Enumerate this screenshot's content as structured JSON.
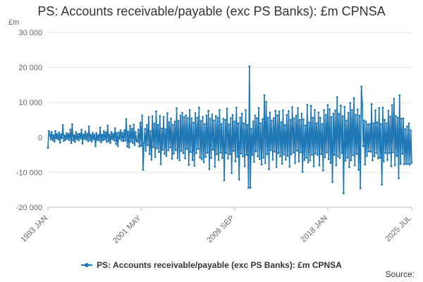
{
  "chart_data": {
    "type": "line",
    "title": "PS: Accounts receivable/payable (exc PS Banks): £m CPNSA",
    "ylabel": "£m",
    "xlabel": "",
    "ylim": [
      -20000,
      30000
    ],
    "y_ticks": [
      -20000,
      -10000,
      0,
      10000,
      20000,
      30000
    ],
    "y_tick_labels": [
      "-20 000",
      "-10 000",
      "0",
      "10 000",
      "20 000",
      "30 000"
    ],
    "x_ticks": [
      {
        "label": "1993 JAN",
        "year": 1993.0
      },
      {
        "label": "2001 MAY",
        "year": 2001.333
      },
      {
        "label": "2009 SEP",
        "year": 2009.667
      },
      {
        "label": "2018 JAN",
        "year": 2018.0
      },
      {
        "label": "2025 JUL",
        "year": 2025.5
      }
    ],
    "x_start": 1993.0,
    "x_end": 2025.5,
    "grid": true,
    "legend_position": "bottom",
    "series": [
      {
        "name": "PS: Accounts receivable/payable (exc PS Banks): £m CPNSA",
        "color": "#1f77b4",
        "x_start": "1993 JAN",
        "frequency": "monthly",
        "values": [
          -3000,
          1800,
          800,
          -500,
          1500,
          -800,
          600,
          -1200,
          1800,
          -300,
          900,
          -600,
          1400,
          -1500,
          800,
          -200,
          3500,
          -1000,
          500,
          -700,
          1200,
          -400,
          900,
          -800,
          2200,
          -1600,
          3700,
          -900,
          600,
          -1300,
          1500,
          -500,
          900,
          -900,
          1000,
          -300,
          2200,
          -1800,
          800,
          -400,
          1600,
          -600,
          1000,
          -1100,
          3100,
          -800,
          700,
          -1200,
          1300,
          -500,
          800,
          -2500,
          1200,
          -700,
          600,
          -900,
          2800,
          -1400,
          700,
          -800,
          1800,
          -600,
          1400,
          -1300,
          3300,
          -1100,
          800,
          -1600,
          1500,
          -500,
          1000,
          -900,
          2600,
          -1900,
          1200,
          -2500,
          1400,
          -400,
          2000,
          -900,
          1300,
          -1100,
          2000,
          -900,
          5200,
          -2600,
          1600,
          -2900,
          3300,
          -1200,
          2500,
          -1600,
          3600,
          -2200,
          1500,
          -1000,
          -1300,
          2200,
          -2600,
          4200,
          -2400,
          6200,
          -9300,
          -1700,
          2400,
          -3800,
          3500,
          -2200,
          5800,
          -4800,
          1800,
          -6400,
          6000,
          -2800,
          3900,
          -5600,
          7400,
          -3100,
          3500,
          -4200,
          6100,
          -7700,
          2500,
          -3500,
          5800,
          -4700,
          2300,
          -5300,
          6900,
          -3700,
          4300,
          -2900,
          5400,
          -6100,
          3600,
          -4600,
          4500,
          -3600,
          8300,
          -5900,
          4700,
          -6600,
          6200,
          -3900,
          7000,
          -4500,
          5800,
          -6000,
          6300,
          -3300,
          5500,
          -7900,
          7800,
          -4200,
          5400,
          -6500,
          4200,
          -8100,
          6900,
          -4500,
          5600,
          -3300,
          8500,
          -5800,
          4700,
          -6300,
          5800,
          -7100,
          3800,
          -5600,
          6200,
          -4400,
          7600,
          -9100,
          5300,
          -5900,
          6500,
          -3500,
          4800,
          -8400,
          6100,
          -4800,
          5600,
          -6500,
          7800,
          -4400,
          3800,
          -5900,
          5300,
          -12300,
          5000,
          -4500,
          8200,
          -6000,
          3700,
          -4800,
          5500,
          -10200,
          6400,
          -3900,
          4500,
          -6900,
          8500,
          -5500,
          4000,
          -12100,
          5600,
          -4600,
          6800,
          -5400,
          4000,
          -8300,
          7800,
          -5000,
          3500,
          -14400,
          20300,
          -14400,
          2400,
          -5000,
          4500,
          -7000,
          6200,
          -4000,
          5500,
          -5400,
          8400,
          -6200,
          4000,
          -7800,
          5200,
          -5800,
          12000,
          -7400,
          10100,
          -4800,
          5600,
          -9100,
          7100,
          -3600,
          4800,
          -6400,
          5500,
          -4100,
          7600,
          -8500,
          6300,
          -4500,
          7400,
          -5400,
          4300,
          -7600,
          7700,
          -4900,
          3500,
          -6400,
          6400,
          -5300,
          7500,
          -8400,
          5000,
          -4800,
          8600,
          -4300,
          5400,
          -7400,
          6200,
          -3800,
          8400,
          -6900,
          5000,
          -4300,
          6800,
          -9900,
          5100,
          -6500,
          3400,
          -5800,
          9300,
          -7200,
          4200,
          -6600,
          9000,
          -5000,
          5600,
          -8300,
          7800,
          -4600,
          4000,
          -5000,
          7100,
          -8000,
          5600,
          -4800,
          3800,
          -9500,
          7800,
          -5700,
          6400,
          -4300,
          9200,
          -6200,
          8000,
          -7300,
          5800,
          -12800,
          6800,
          -5000,
          7700,
          -8000,
          11500,
          -5400,
          6700,
          -5900,
          9100,
          -4500,
          6000,
          -16000,
          8700,
          -6700,
          4800,
          -5800,
          7000,
          -8500,
          9800,
          -6600,
          7800,
          -5100,
          11200,
          -8000,
          6400,
          -4700,
          8000,
          -9300,
          6200,
          -14600,
          14500,
          9500,
          -2500,
          4800,
          -7800,
          4500,
          -5300,
          3700,
          -4000,
          3800,
          -4100,
          9500,
          -6600,
          4000,
          -5400,
          7700,
          -4500,
          4300,
          -6000,
          8400,
          -5800,
          3800,
          -13500,
          8500,
          -6900,
          5000,
          -4500,
          4000,
          -6500,
          7600,
          -4500,
          5900,
          -8300,
          9200,
          -4300,
          11000,
          -8000,
          6100,
          -5300,
          5600,
          -11700,
          12000,
          -7600,
          5300,
          -4700,
          5400,
          -7700,
          2300,
          -7600,
          3100,
          -7600,
          4000,
          -7800,
          2000,
          -7300
        ]
      }
    ]
  },
  "legend": {
    "label": "PS: Accounts receivable/payable (exc PS Banks): £m CPNSA"
  },
  "source_label": "Source:"
}
